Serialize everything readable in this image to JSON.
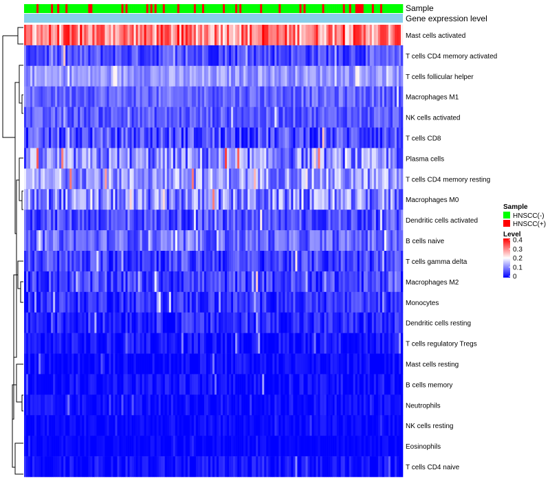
{
  "chart_data": {
    "type": "heatmap",
    "annotation_rows": {
      "sample": "Sample",
      "expression": "Gene expression level"
    },
    "rows": [
      {
        "label": "Mast cells activated",
        "mean": 0.3,
        "spread": 0.09
      },
      {
        "label": "T cells CD4 memory activated",
        "mean": 0.06,
        "spread": 0.05
      },
      {
        "label": "T cells follicular helper",
        "mean": 0.12,
        "spread": 0.04
      },
      {
        "label": "Macrophages M1",
        "mean": 0.08,
        "spread": 0.04
      },
      {
        "label": "NK cells activated",
        "mean": 0.07,
        "spread": 0.04
      },
      {
        "label": "T cells CD8",
        "mean": 0.06,
        "spread": 0.06
      },
      {
        "label": "Plasma cells",
        "mean": 0.1,
        "spread": 0.08
      },
      {
        "label": "T cells CD4 memory resting",
        "mean": 0.12,
        "spread": 0.07
      },
      {
        "label": "Macrophages M0",
        "mean": 0.1,
        "spread": 0.08
      },
      {
        "label": "Dendritic cells activated",
        "mean": 0.06,
        "spread": 0.05
      },
      {
        "label": "B cells naive",
        "mean": 0.08,
        "spread": 0.05
      },
      {
        "label": "T cells gamma delta",
        "mean": 0.05,
        "spread": 0.05
      },
      {
        "label": "Macrophages M2",
        "mean": 0.05,
        "spread": 0.05
      },
      {
        "label": "Monocytes",
        "mean": 0.04,
        "spread": 0.04
      },
      {
        "label": "Dendritic cells resting",
        "mean": 0.03,
        "spread": 0.04
      },
      {
        "label": "T cells regulatory  Tregs",
        "mean": 0.015,
        "spread": 0.03
      },
      {
        "label": "Mast cells resting",
        "mean": 0.005,
        "spread": 0.03
      },
      {
        "label": "B cells memory",
        "mean": 0.01,
        "spread": 0.03
      },
      {
        "label": "Neutrophils",
        "mean": 0.01,
        "spread": 0.025
      },
      {
        "label": "NK cells resting",
        "mean": 0.005,
        "spread": 0.02
      },
      {
        "label": "Eosinophils",
        "mean": 0.003,
        "spread": 0.015
      },
      {
        "label": "T cells CD4 naive",
        "mean": 0.01,
        "spread": 0.03
      }
    ],
    "n_samples": 183,
    "positive_fraction": 0.22,
    "legend": {
      "sample_title": "Sample",
      "sample_entries": [
        {
          "label": "HNSCC(-)",
          "color": "#00ff00"
        },
        {
          "label": "HNSCC(+)",
          "color": "#ff0000"
        }
      ],
      "level_title": "Level",
      "level_ticks": [
        "0.4",
        "0.3",
        "0.2",
        "0.1",
        "0"
      ],
      "level_range": [
        0,
        0.4
      ]
    },
    "color_scale": {
      "low": "#0000ff",
      "mid": "#ffffff",
      "high": "#ff0000",
      "mid_value": 0.2
    },
    "expression_bar_color": "#87ceeb",
    "legend_position": "right"
  }
}
